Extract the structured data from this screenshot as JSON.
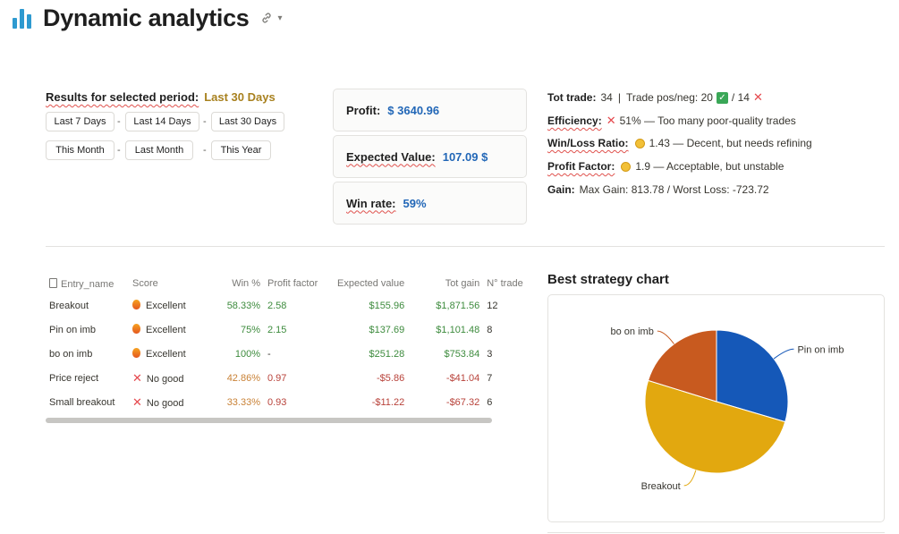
{
  "header": {
    "title": "Dynamic analytics",
    "logo_icon": "bar-chart-icon",
    "link_icon": "link-icon",
    "menu_icon": "chevron-down-icon"
  },
  "period": {
    "label": "Results for selected period:",
    "value": "Last 30 Days",
    "buttons_row1": [
      "Last 7 Days",
      "Last 14 Days",
      "Last 30 Days"
    ],
    "buttons_row2": [
      "This Month",
      "Last Month",
      "This Year"
    ],
    "separator": "-"
  },
  "cards": {
    "profit": {
      "label": "Profit:",
      "value": "$ 3640.96"
    },
    "expected": {
      "label": "Expected Value:",
      "value": "107.09 $"
    },
    "winrate": {
      "label": "Win rate:",
      "value": "59%"
    }
  },
  "stats": {
    "tot_trade_label": "Tot trade:",
    "tot_trade_value": "34",
    "trade_posneg_label": "Trade pos/neg:",
    "trade_pos": "20",
    "trade_neg": "/ 14",
    "efficiency_label": "Efficiency:",
    "efficiency_value": "51% — Too many poor-quality trades",
    "winloss_label": "Win/Loss Ratio:",
    "winloss_value": "1.43 — Decent, but needs refining",
    "profit_factor_label": "Profit Factor:",
    "profit_factor_value": "1.9 — Acceptable, but unstable",
    "gain_label": "Gain:",
    "gain_value": "Max Gain: 813.78 / Worst Loss: -723.72"
  },
  "table": {
    "headers": [
      "Entry_name",
      "Score",
      "Win %",
      "Profit factor",
      "Expected value",
      "Tot gain",
      "N° trade"
    ],
    "rows": [
      {
        "name": "Breakout",
        "score": "Excellent",
        "score_icon": "fire-icon",
        "win": "58.33%",
        "pf": "2.58",
        "ev": "$155.96",
        "gain": "$1,871.56",
        "n": "12"
      },
      {
        "name": "Pin on imb",
        "score": "Excellent",
        "score_icon": "fire-icon",
        "win": "75%",
        "pf": "2.15",
        "ev": "$137.69",
        "gain": "$1,101.48",
        "n": "8"
      },
      {
        "name": "bo on imb",
        "score": "Excellent",
        "score_icon": "fire-icon",
        "win": "100%",
        "pf": "-",
        "ev": "$251.28",
        "gain": "$753.84",
        "n": "3"
      },
      {
        "name": "Price reject",
        "score": "No good",
        "score_icon": "cross-icon",
        "win": "42.86%",
        "pf": "0.97",
        "ev": "-$5.86",
        "gain": "-$41.04",
        "n": "7"
      },
      {
        "name": "Small breakout",
        "score": "No good",
        "score_icon": "cross-icon",
        "win": "33.33%",
        "pf": "0.93",
        "ev": "-$11.22",
        "gain": "-$67.32",
        "n": "6"
      }
    ]
  },
  "chart_title": "Best strategy chart",
  "chart_data": {
    "type": "pie",
    "categories": [
      "Pin on imb",
      "Breakout",
      "bo on imb"
    ],
    "values": [
      1101.48,
      1871.56,
      753.84
    ],
    "colors": [
      "#1558b8",
      "#e2a80f",
      "#c85a1f"
    ],
    "legend": "none",
    "labels": [
      "Pin on imb",
      "Breakout",
      "bo on imb"
    ]
  }
}
